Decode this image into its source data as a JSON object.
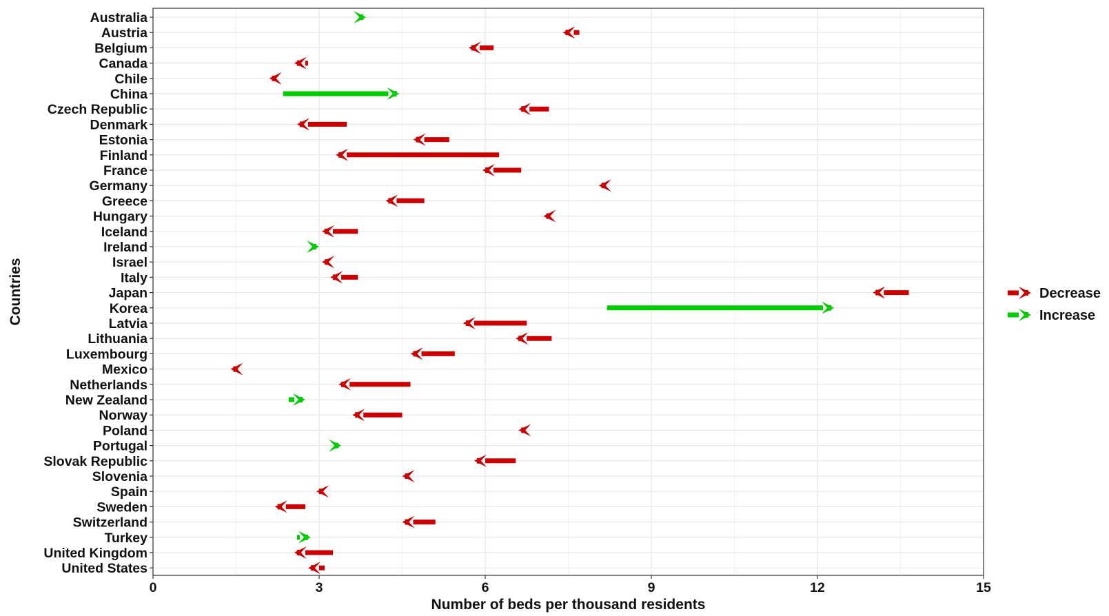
{
  "chart_data": {
    "type": "arrow",
    "xlabel": "Number of beds per thousand residents",
    "ylabel": "Countries",
    "xlim": [
      0,
      15
    ],
    "xticks": [
      0,
      3,
      6,
      9,
      12,
      15
    ],
    "grid": true,
    "legend_position": "right",
    "colors": {
      "Decrease": "#cc0000",
      "Increase": "#00cc00"
    },
    "legend": [
      {
        "label": "Decrease",
        "color": "#cc0000"
      },
      {
        "label": "Increase",
        "color": "#00cc00"
      }
    ],
    "countries": [
      {
        "name": "Australia",
        "start": 3.65,
        "end": 3.85,
        "change": "Increase"
      },
      {
        "name": "Austria",
        "start": 7.7,
        "end": 7.4,
        "change": "Decrease"
      },
      {
        "name": "Belgium",
        "start": 6.15,
        "end": 5.7,
        "change": "Decrease"
      },
      {
        "name": "Canada",
        "start": 2.8,
        "end": 2.55,
        "change": "Decrease"
      },
      {
        "name": "Chile",
        "start": 2.25,
        "end": 2.1,
        "change": "Decrease"
      },
      {
        "name": "China",
        "start": 2.35,
        "end": 4.45,
        "change": "Increase"
      },
      {
        "name": "Czech Republic",
        "start": 7.15,
        "end": 6.6,
        "change": "Decrease"
      },
      {
        "name": "Denmark",
        "start": 3.5,
        "end": 2.6,
        "change": "Decrease"
      },
      {
        "name": "Estonia",
        "start": 5.35,
        "end": 4.7,
        "change": "Decrease"
      },
      {
        "name": "Finland",
        "start": 6.25,
        "end": 3.3,
        "change": "Decrease"
      },
      {
        "name": "France",
        "start": 6.65,
        "end": 5.95,
        "change": "Decrease"
      },
      {
        "name": "Germany",
        "start": 8.25,
        "end": 8.05,
        "change": "Decrease"
      },
      {
        "name": "Greece",
        "start": 4.9,
        "end": 4.2,
        "change": "Decrease"
      },
      {
        "name": "Hungary",
        "start": 7.25,
        "end": 7.05,
        "change": "Decrease"
      },
      {
        "name": "Iceland",
        "start": 3.7,
        "end": 3.05,
        "change": "Decrease"
      },
      {
        "name": "Ireland",
        "start": 2.85,
        "end": 3.0,
        "change": "Increase"
      },
      {
        "name": "Israel",
        "start": 3.2,
        "end": 3.05,
        "change": "Decrease"
      },
      {
        "name": "Italy",
        "start": 3.7,
        "end": 3.2,
        "change": "Decrease"
      },
      {
        "name": "Japan",
        "start": 13.65,
        "end": 13.0,
        "change": "Decrease"
      },
      {
        "name": "Korea",
        "start": 8.2,
        "end": 12.3,
        "change": "Increase"
      },
      {
        "name": "Latvia",
        "start": 6.75,
        "end": 5.6,
        "change": "Decrease"
      },
      {
        "name": "Lithuania",
        "start": 7.2,
        "end": 6.55,
        "change": "Decrease"
      },
      {
        "name": "Luxembourg",
        "start": 5.45,
        "end": 4.65,
        "change": "Decrease"
      },
      {
        "name": "Mexico",
        "start": 1.6,
        "end": 1.4,
        "change": "Decrease"
      },
      {
        "name": "Netherlands",
        "start": 4.65,
        "end": 3.35,
        "change": "Decrease"
      },
      {
        "name": "New Zealand",
        "start": 2.45,
        "end": 2.75,
        "change": "Increase"
      },
      {
        "name": "Norway",
        "start": 4.5,
        "end": 3.6,
        "change": "Decrease"
      },
      {
        "name": "Poland",
        "start": 6.8,
        "end": 6.6,
        "change": "Decrease"
      },
      {
        "name": "Portugal",
        "start": 3.2,
        "end": 3.4,
        "change": "Increase"
      },
      {
        "name": "Slovak Republic",
        "start": 6.55,
        "end": 5.8,
        "change": "Decrease"
      },
      {
        "name": "Slovenia",
        "start": 4.7,
        "end": 4.5,
        "change": "Decrease"
      },
      {
        "name": "Spain",
        "start": 3.15,
        "end": 2.95,
        "change": "Decrease"
      },
      {
        "name": "Sweden",
        "start": 2.75,
        "end": 2.2,
        "change": "Decrease"
      },
      {
        "name": "Switzerland",
        "start": 5.1,
        "end": 4.5,
        "change": "Decrease"
      },
      {
        "name": "Turkey",
        "start": 2.6,
        "end": 2.85,
        "change": "Increase"
      },
      {
        "name": "United Kingdom",
        "start": 3.25,
        "end": 2.55,
        "change": "Decrease"
      },
      {
        "name": "United States",
        "start": 3.1,
        "end": 2.8,
        "change": "Decrease"
      }
    ]
  }
}
